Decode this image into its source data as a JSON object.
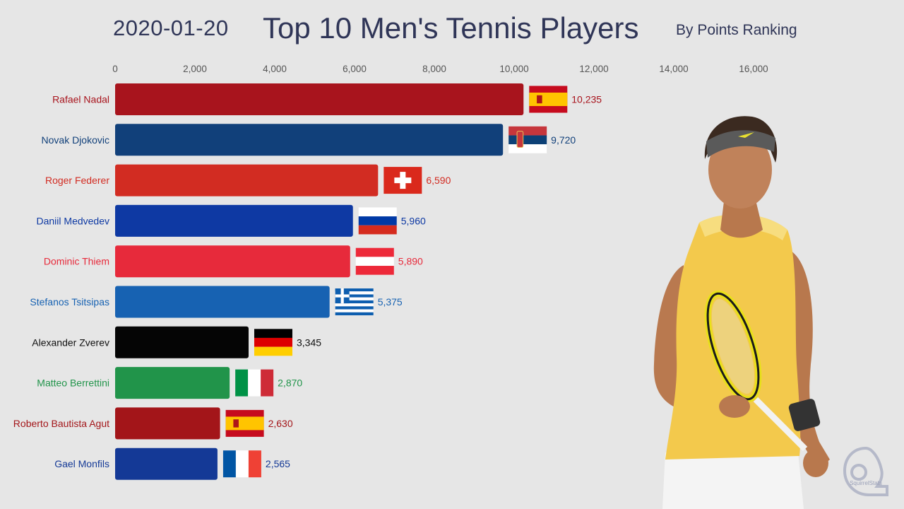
{
  "header": {
    "date": "2020-01-20",
    "title": "Top 10 Men's Tennis Players",
    "subtitle": "By Points Ranking"
  },
  "watermark": "SquirrelStats",
  "chart_data": {
    "type": "bar",
    "orientation": "horizontal",
    "title": "Top 10 Men's Tennis Players",
    "subtitle": "By Points Ranking",
    "xlim": [
      0,
      16000
    ],
    "xticks": [
      0,
      2000,
      4000,
      6000,
      8000,
      10000,
      12000,
      14000,
      16000
    ],
    "xtick_labels": [
      "0",
      "2,000",
      "4,000",
      "6,000",
      "8,000",
      "10,000",
      "12,000",
      "14,000",
      "16,000"
    ],
    "grid": false,
    "categories": [
      "Rafael Nadal",
      "Novak Djokovic",
      "Roger Federer",
      "Daniil Medvedev",
      "Dominic Thiem",
      "Stefanos Tsitsipas",
      "Alexander Zverev",
      "Matteo Berrettini",
      "Roberto Bautista Agut",
      "Gael Monfils"
    ],
    "values": [
      10235,
      9720,
      6590,
      5960,
      5890,
      5375,
      3345,
      2870,
      2630,
      2565
    ],
    "value_labels": [
      "10,235",
      "9,720",
      "6,590",
      "5,960",
      "5,890",
      "5,375",
      "3,345",
      "2,870",
      "2,630",
      "2,565"
    ],
    "countries": [
      "spain",
      "serbia",
      "switzerland",
      "russia",
      "austria",
      "greece",
      "germany",
      "italy",
      "spain",
      "france"
    ],
    "bar_colors": [
      "#a8141d",
      "#11407a",
      "#d22c22",
      "#0e39a3",
      "#e72a3b",
      "#1762b2",
      "#050505",
      "#21944a",
      "#a31519",
      "#143996"
    ],
    "label_colors": [
      "#a8141d",
      "#11407a",
      "#d22c22",
      "#0e39a3",
      "#e72a3b",
      "#1762b2",
      "#111111",
      "#21944a",
      "#a31519",
      "#143996"
    ]
  }
}
